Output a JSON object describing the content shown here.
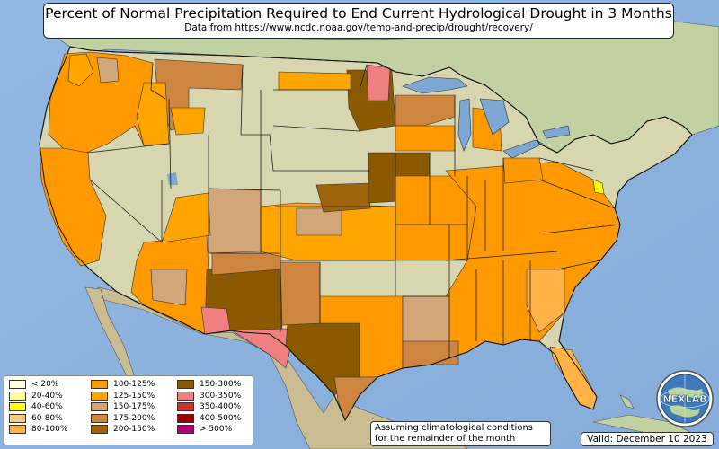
{
  "title": "Percent of Normal Precipitation Required to End Current Hydrological Drought in 3 Months",
  "subtitle": "Data from https://www.ncdc.noaa.gov/temp-and-precip/drought/recovery/",
  "legend": {
    "items": [
      {
        "label": "< 20%",
        "color": "#ffffe0"
      },
      {
        "label": "20-40%",
        "color": "#ffff99"
      },
      {
        "label": "40-60%",
        "color": "#ffff00"
      },
      {
        "label": "60-80%",
        "color": "#ffcc80"
      },
      {
        "label": "80-100%",
        "color": "#ffb347"
      },
      {
        "label": "100-125%",
        "color": "#ff9900"
      },
      {
        "label": "125-150%",
        "color": "#ffa500"
      },
      {
        "label": "150-175%",
        "color": "#d2a679"
      },
      {
        "label": "175-200%",
        "color": "#cd853f"
      },
      {
        "label": "200-150%",
        "color": "#a0640a"
      },
      {
        "label": "150-300%",
        "color": "#8b5a00"
      },
      {
        "label": "300-350%",
        "color": "#f08080"
      },
      {
        "label": "350-400%",
        "color": "#d03030"
      },
      {
        "label": "400-500%",
        "color": "#a00000"
      },
      {
        "label": "> 500%",
        "color": "#b0006e"
      }
    ]
  },
  "note": {
    "line1": "Assuming climatological conditions",
    "line2": "for the remainder of the month"
  },
  "valid": "Valid: December 10 2023",
  "logo": {
    "text": "NEXLAB",
    "icon": "nexlab-globe-logo"
  },
  "colors": {
    "ocean": "#8fb3df",
    "land_us": "#d9d9b0",
    "land_north": "#c4d3a6",
    "land_mexico": "#cdbf94",
    "lake": "#7da8d6",
    "border": "#222222"
  }
}
